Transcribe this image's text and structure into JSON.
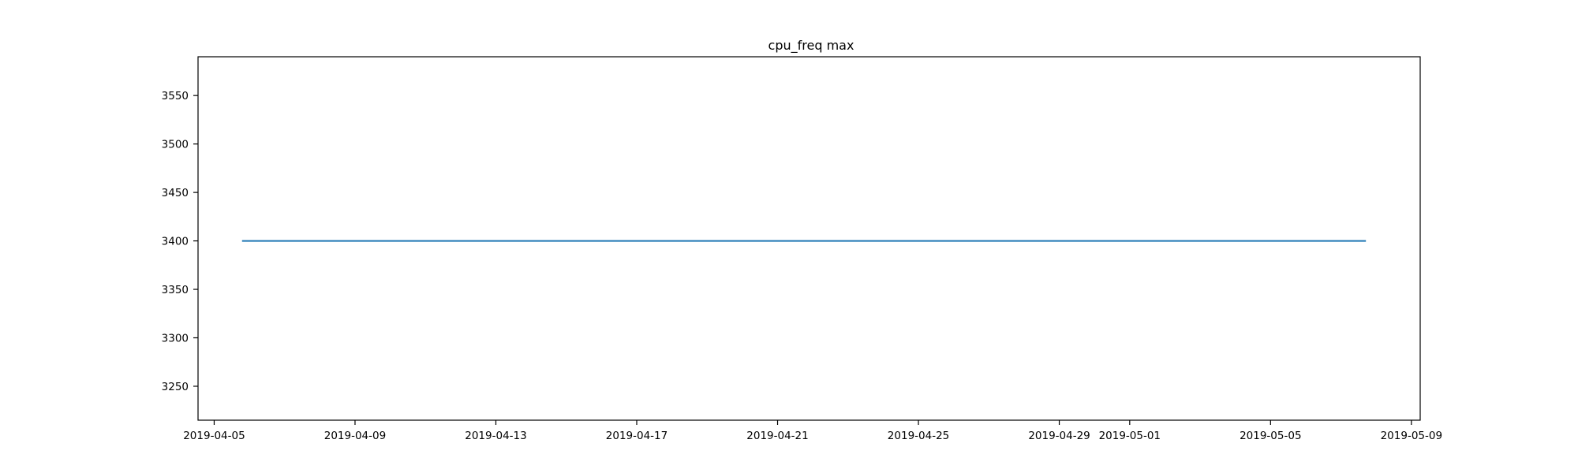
{
  "chart_data": {
    "type": "line",
    "title": "cpu_freq max",
    "xlabel": "",
    "ylabel": "",
    "x_type": "date",
    "xlim": [
      "2019-04-04T13:00:00",
      "2019-05-09T06:00:00"
    ],
    "ylim": [
      3215,
      3590
    ],
    "grid": false,
    "x_ticks": [
      "2019-04-05",
      "2019-04-09",
      "2019-04-13",
      "2019-04-17",
      "2019-04-21",
      "2019-04-25",
      "2019-04-29",
      "2019-05-01",
      "2019-05-05",
      "2019-05-09"
    ],
    "y_ticks": [
      3250,
      3300,
      3350,
      3400,
      3450,
      3500,
      3550
    ],
    "series": [
      {
        "color": "#1f77b4",
        "x": [
          "2019-04-05T19:00:00",
          "2019-05-07T17:00:00"
        ],
        "y": [
          3400,
          3400
        ]
      }
    ]
  }
}
